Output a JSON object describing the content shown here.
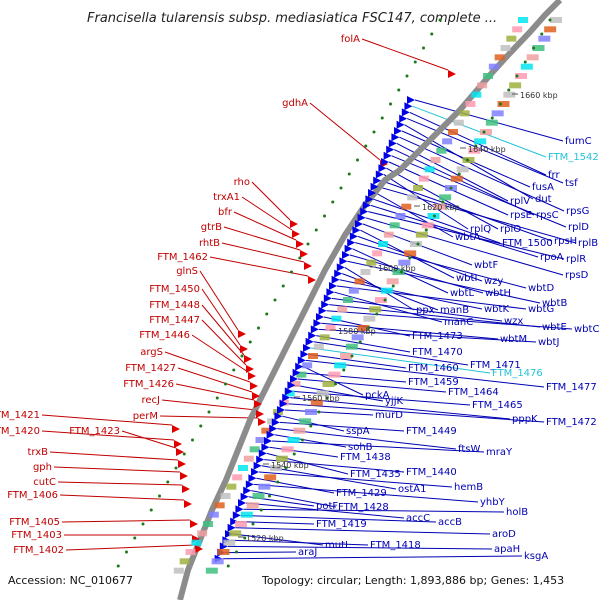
{
  "title": "Francisella tularensis subsp. mediasiatica FSC147, complete ...",
  "footer": {
    "accession": "Accession: NC_010677",
    "summary": "Topology: circular; Length: 1,893,886 bp; Genes: 1,453"
  },
  "colors": {
    "backbone": "#8c8c8c",
    "forward_feature": "#e00000",
    "reverse_feature": "#0000e6",
    "forward_label": "#c00000",
    "reverse_label": "#0000b4",
    "highlight_label": "#22c4d8",
    "gc_dots": "#1a7a1a"
  },
  "ticks": [
    "1660 kbp",
    "1640 kbp",
    "1620 kbp",
    "1600 kbp",
    "1580 kbp",
    "1560 kbp",
    "1540 kbp",
    "1520 kbp"
  ],
  "forward_genes": [
    "folA",
    "gdhA",
    "rho",
    "trxA1",
    "bfr",
    "gtrB",
    "rhtB",
    "FTM_1462",
    "glnS",
    "FTM_1450",
    "FTM_1448",
    "FTM_1447",
    "FTM_1446",
    "argS",
    "FTM_1427",
    "FTM_1426",
    "recJ",
    "perM",
    "FTM_1421",
    "FTM_1420",
    "FTM_1423",
    "trxB",
    "gph",
    "cutC",
    "FTM_1406",
    "FTM_1405",
    "FTM_1403",
    "FTM_1402"
  ],
  "reverse_genes": [
    "fumC",
    "FTM_1542",
    "frr",
    "tsf",
    "dut",
    "fusA",
    "rpsG",
    "rplV",
    "rpsC",
    "rplD",
    "rpsE",
    "rplO",
    "rplQ",
    "rpsH",
    "rplB",
    "wbtA",
    "FTM_1500",
    "rpoA",
    "rplR",
    "rpsD",
    "wbtF",
    "wbtI",
    "wzy",
    "wbtD",
    "wbtL",
    "wbtH",
    "wbtB",
    "ppx",
    "manB",
    "wbtK",
    "wbtG",
    "manC",
    "wzx",
    "wbtE",
    "wbtC",
    "FTM_1473",
    "wbtM",
    "wbtJ",
    "FTM_1470",
    "FTM_1471",
    "FTM_1476",
    "FTM_1460",
    "FTM_1477",
    "pckA",
    "FTM_1459",
    "FTM_1464",
    "yjjK",
    "FTM_1465",
    "pppK",
    "FTM_1472",
    "murD",
    "sspA",
    "FTM_1449",
    "ftsW",
    "sohB",
    "mraY",
    "FTM_1438",
    "FTM_1435",
    "FTM_1440",
    "ostA1",
    "hemB",
    "FTM_1429",
    "yhbY",
    "FTM_1428",
    "potF",
    "accC",
    "holB",
    "accB",
    "FTM_1419",
    "aroD",
    "mutL",
    "FTM_1418",
    "apaH",
    "araJ",
    "ksgA"
  ]
}
